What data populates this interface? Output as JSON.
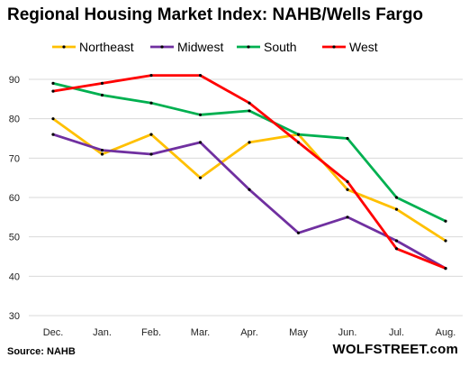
{
  "chart_data": {
    "type": "line",
    "title": "Regional Housing Market Index: NAHB/Wells Fargo",
    "categories": [
      "Dec.",
      "Jan.",
      "Feb.",
      "Mar.",
      "Apr.",
      "May",
      "Jun.",
      "Jul.",
      "Aug."
    ],
    "yticks": [
      30,
      40,
      50,
      60,
      70,
      80,
      90
    ],
    "ylim": [
      30,
      93
    ],
    "grid": "horizontal",
    "legend_position": "top",
    "series": [
      {
        "name": "Northeast",
        "color": "#FFC000",
        "values": [
          80,
          71,
          76,
          65,
          74,
          76,
          62,
          57,
          49
        ]
      },
      {
        "name": "Midwest",
        "color": "#7030A0",
        "values": [
          76,
          72,
          71,
          74,
          62,
          51,
          55,
          49,
          42
        ]
      },
      {
        "name": "South",
        "color": "#00B050",
        "values": [
          89,
          86,
          84,
          81,
          82,
          76,
          75,
          60,
          54
        ]
      },
      {
        "name": "West",
        "color": "#FF0000",
        "values": [
          87,
          89,
          91,
          91,
          84,
          74,
          64,
          47,
          42
        ]
      }
    ]
  },
  "footer": {
    "source": "Source: NAHB",
    "brand": "WOLFSTREET.com"
  }
}
